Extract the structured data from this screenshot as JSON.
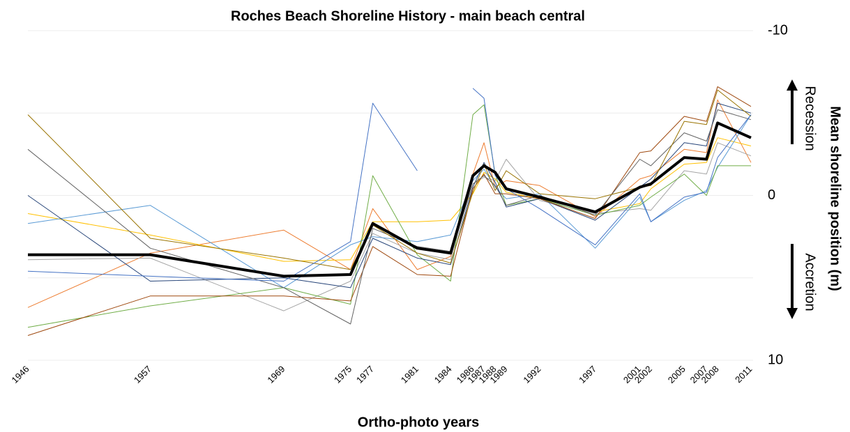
{
  "chart_data": {
    "type": "line",
    "title": "Roches Beach Shoreline History - main beach central",
    "x_label": "Ortho-photo years",
    "y_label": "Mean shoreline position (m)",
    "annotations": [
      "Recession",
      "Accretion"
    ],
    "x": [
      1946,
      1957,
      1969,
      1975,
      1977,
      1981,
      1984,
      1986,
      1987,
      1988,
      1989,
      1992,
      1997,
      2001,
      2002,
      2005,
      2007,
      2008,
      2011
    ],
    "xlim": [
      1946,
      2011
    ],
    "xticks": [
      1946,
      1957,
      1969,
      1975,
      1977,
      1981,
      1984,
      1986,
      1987,
      1988,
      1989,
      1992,
      1997,
      2001,
      2002,
      2005,
      2007,
      2008,
      2011
    ],
    "ylim": [
      -10,
      10
    ],
    "yticks": [
      -10,
      0,
      10
    ],
    "minor_yticks": [
      -5,
      5
    ],
    "y_inverted": true,
    "grid": true,
    "series": [
      {
        "color": "#ed7d31",
        "width": 1,
        "values": [
          6.8,
          3.5,
          2.1,
          4.5,
          0.8,
          4.5,
          3.7,
          -1.3,
          -3.2,
          -0.5,
          -0.9,
          -0.6,
          1.3,
          -1.0,
          -1.2,
          -2.8,
          -2.6,
          -5.8,
          -2.0
        ]
      },
      {
        "color": "#a5a5a5",
        "width": 1,
        "values": [
          3.9,
          3.8,
          7.0,
          5.2,
          2.3,
          3.5,
          3.9,
          -0.7,
          -1.1,
          -0.9,
          -2.2,
          0.3,
          1.1,
          0.8,
          0.9,
          -1.5,
          -1.3,
          -3.2,
          -2.4
        ]
      },
      {
        "color": "#ffc000",
        "width": 1,
        "values": [
          1.1,
          2.4,
          4.0,
          3.9,
          1.6,
          1.6,
          1.5,
          -0.1,
          -1.4,
          -1.0,
          -0.2,
          0.2,
          1.0,
          0.5,
          -0.4,
          -1.9,
          -2.0,
          -3.5,
          -3.0
        ]
      },
      {
        "color": "#5b9bd5",
        "width": 1,
        "values": [
          1.7,
          0.6,
          5.6,
          3.0,
          2.5,
          2.8,
          2.4,
          -0.9,
          -1.6,
          -0.5,
          0.2,
          -0.1,
          3.2,
          0.1,
          1.6,
          0.3,
          -0.3,
          -1.7,
          -4.9
        ]
      },
      {
        "color": "#70ad47",
        "width": 1,
        "values": [
          8.0,
          6.7,
          5.6,
          6.6,
          -1.2,
          3.6,
          5.2,
          -4.9,
          -5.5,
          -1.3,
          0.6,
          0.2,
          1.2,
          0.6,
          0.1,
          -1.3,
          0.0,
          -1.8,
          -1.8
        ]
      },
      {
        "color": "#264478",
        "width": 1,
        "values": [
          0.0,
          5.2,
          5.0,
          5.6,
          2.6,
          3.8,
          4.2,
          -0.5,
          -2.0,
          -0.8,
          0.7,
          0.2,
          1.5,
          -0.5,
          -1.0,
          -3.2,
          -3.0,
          -5.6,
          -5.0
        ]
      },
      {
        "color": "#9e480e",
        "width": 1,
        "values": [
          8.5,
          6.1,
          6.1,
          6.4,
          3.1,
          4.8,
          4.9,
          -0.4,
          -1.3,
          -0.1,
          -0.1,
          0.2,
          1.4,
          -2.6,
          -2.7,
          -4.8,
          -4.5,
          -6.6,
          -5.4
        ]
      },
      {
        "color": "#636363",
        "width": 1,
        "values": [
          -2.8,
          3.2,
          5.6,
          7.8,
          2.0,
          3.1,
          3.4,
          -0.7,
          -1.2,
          -0.6,
          0.6,
          0.0,
          1.2,
          -2.2,
          -1.8,
          -3.8,
          -3.3,
          -5.2,
          -4.6
        ]
      },
      {
        "color": "#997300",
        "width": 1,
        "values": [
          -4.9,
          2.6,
          3.8,
          4.5,
          1.8,
          3.5,
          4.1,
          -0.2,
          -1.9,
          -0.3,
          -1.5,
          -0.1,
          0.2,
          -0.5,
          -0.6,
          -4.5,
          -4.3,
          -6.4,
          -4.8
        ]
      },
      {
        "color": "#4472c4",
        "width": 1,
        "values": [
          4.6,
          4.9,
          5.2,
          2.8,
          -5.6,
          -1.5,
          null,
          -6.5,
          -5.9,
          -1.2,
          -0.4,
          0.8,
          3.0,
          -0.1,
          1.6,
          0.1,
          -0.2,
          -2.3,
          -4.9
        ]
      },
      {
        "color": "#000000",
        "width": 4,
        "values": [
          3.6,
          3.6,
          4.9,
          4.8,
          1.7,
          3.2,
          3.5,
          -1.2,
          -1.8,
          -1.4,
          -0.4,
          0.1,
          1.0,
          -0.5,
          -0.7,
          -2.3,
          -2.2,
          -4.4,
          -3.5
        ]
      }
    ]
  }
}
